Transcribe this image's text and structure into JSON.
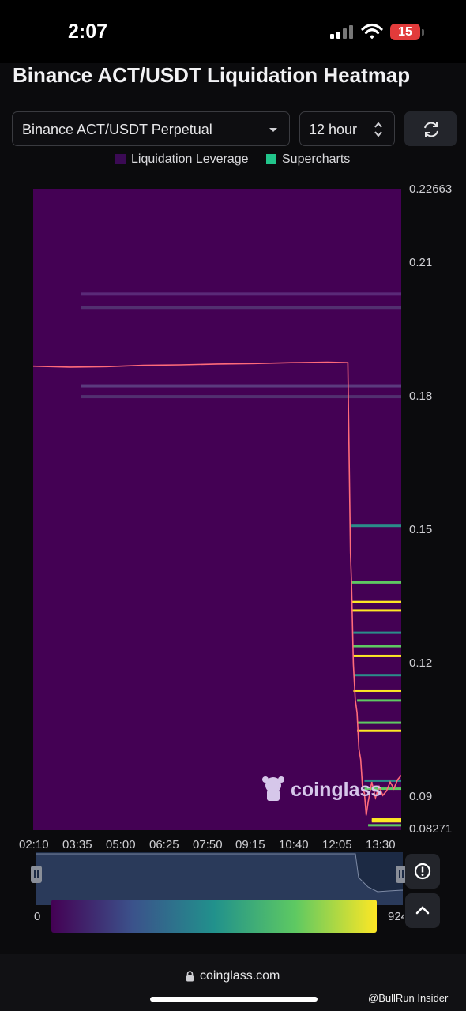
{
  "status_bar": {
    "time": "2:07",
    "battery": "15"
  },
  "title": "Binance ACT/USDT Liquidation Heatmap",
  "controls": {
    "symbol": "Binance ACT/USDT Perpetual",
    "interval": "12 hour"
  },
  "legend": [
    {
      "label": "Liquidation Leverage",
      "color": "#3b0a54"
    },
    {
      "label": "Supercharts",
      "color": "#22c58b"
    }
  ],
  "chart_data": {
    "type": "heatmap",
    "title": "",
    "y_ticks": [
      "0.22663",
      "0.21",
      "0.18",
      "0.15",
      "0.12",
      "0.09",
      "0.08271"
    ],
    "ylim": [
      0.08271,
      0.22663
    ],
    "x_ticks": [
      "02:10",
      "03:35",
      "05:00",
      "06:25",
      "07:50",
      "09:15",
      "10:40",
      "12:05",
      "13:30"
    ],
    "background_color": "#440154",
    "price_line_color": "#ff6b7a",
    "price_series": [
      {
        "x": 0.0,
        "y": 0.1868
      },
      {
        "x": 0.1,
        "y": 0.1866
      },
      {
        "x": 0.2,
        "y": 0.1867
      },
      {
        "x": 0.3,
        "y": 0.187
      },
      {
        "x": 0.4,
        "y": 0.1871
      },
      {
        "x": 0.5,
        "y": 0.1873
      },
      {
        "x": 0.6,
        "y": 0.1874
      },
      {
        "x": 0.7,
        "y": 0.1876
      },
      {
        "x": 0.8,
        "y": 0.1877
      },
      {
        "x": 0.855,
        "y": 0.1876
      },
      {
        "x": 0.862,
        "y": 0.145
      },
      {
        "x": 0.865,
        "y": 0.138
      },
      {
        "x": 0.87,
        "y": 0.12
      },
      {
        "x": 0.875,
        "y": 0.112
      },
      {
        "x": 0.88,
        "y": 0.109
      },
      {
        "x": 0.885,
        "y": 0.101
      },
      {
        "x": 0.89,
        "y": 0.0985
      },
      {
        "x": 0.895,
        "y": 0.092
      },
      {
        "x": 0.9,
        "y": 0.091
      },
      {
        "x": 0.905,
        "y": 0.086
      },
      {
        "x": 0.91,
        "y": 0.089
      },
      {
        "x": 0.92,
        "y": 0.0935
      },
      {
        "x": 0.93,
        "y": 0.09
      },
      {
        "x": 0.94,
        "y": 0.0925
      },
      {
        "x": 0.95,
        "y": 0.0905
      },
      {
        "x": 0.96,
        "y": 0.0915
      },
      {
        "x": 0.97,
        "y": 0.0935
      },
      {
        "x": 0.98,
        "y": 0.092
      },
      {
        "x": 0.99,
        "y": 0.094
      },
      {
        "x": 1.0,
        "y": 0.095
      }
    ],
    "faint_levels": [
      {
        "y": 0.203,
        "x_start": 0.13,
        "color": "#5a2a78"
      },
      {
        "y": 0.2,
        "x_start": 0.13,
        "color": "#523070"
      },
      {
        "y": 0.1824,
        "x_start": 0.13,
        "color": "#5b3a7e"
      },
      {
        "y": 0.18,
        "x_start": 0.13,
        "color": "#523070"
      }
    ],
    "liquidation_levels": [
      {
        "y": 0.151,
        "x_start": 0.865,
        "color": "#2a8d8a"
      },
      {
        "y": 0.1383,
        "x_start": 0.865,
        "color": "#5ec962"
      },
      {
        "y": 0.1339,
        "x_start": 0.865,
        "color": "#fde725"
      },
      {
        "y": 0.132,
        "x_start": 0.865,
        "color": "#fde725"
      },
      {
        "y": 0.127,
        "x_start": 0.87,
        "color": "#2a8d8a"
      },
      {
        "y": 0.124,
        "x_start": 0.87,
        "color": "#5ec962"
      },
      {
        "y": 0.1218,
        "x_start": 0.87,
        "color": "#fde725"
      },
      {
        "y": 0.1175,
        "x_start": 0.87,
        "color": "#2a8d8a"
      },
      {
        "y": 0.114,
        "x_start": 0.87,
        "color": "#fde725"
      },
      {
        "y": 0.1118,
        "x_start": 0.88,
        "color": "#5ec962"
      },
      {
        "y": 0.1068,
        "x_start": 0.88,
        "color": "#5ec962"
      },
      {
        "y": 0.105,
        "x_start": 0.88,
        "color": "#fde725"
      },
      {
        "y": 0.0938,
        "x_start": 0.9,
        "color": "#2a8d8a"
      },
      {
        "y": 0.092,
        "x_start": 0.9,
        "color": "#5ec962"
      },
      {
        "y": 0.0851,
        "x_start": 0.92,
        "color": "#fde725"
      },
      {
        "y": 0.0847,
        "x_start": 0.92,
        "color": "#fde725"
      },
      {
        "y": 0.0838,
        "x_start": 0.91,
        "color": "#5ec962"
      }
    ]
  },
  "watermark": "coinglass",
  "color_scale": {
    "min_label": "0",
    "max_label": "924"
  },
  "browser": {
    "url": "coinglass.com"
  },
  "credit": "@BullRun Insider"
}
